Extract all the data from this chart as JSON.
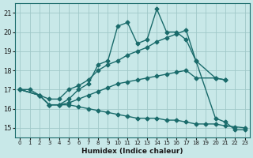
{
  "xlabel": "Humidex (Indice chaleur)",
  "ylabel": "",
  "bg_color": "#c8e8e8",
  "line_color": "#1a6b6b",
  "grid_color": "#a0c8c8",
  "xlim": [
    -0.5,
    23.5
  ],
  "ylim": [
    14.5,
    21.5
  ],
  "xticks": [
    0,
    1,
    2,
    3,
    4,
    5,
    6,
    7,
    8,
    9,
    10,
    11,
    12,
    13,
    14,
    15,
    16,
    17,
    18,
    19,
    20,
    21,
    22,
    23
  ],
  "yticks": [
    15,
    16,
    17,
    18,
    19,
    20,
    21
  ],
  "series": [
    {
      "x": [
        0,
        1,
        2,
        3,
        4,
        5,
        6,
        7,
        8,
        9,
        10,
        11,
        12,
        13,
        14,
        15,
        16,
        17,
        18,
        20,
        21,
        22,
        23
      ],
      "y": [
        17.0,
        17.0,
        16.7,
        16.2,
        16.2,
        16.5,
        17.0,
        17.3,
        18.3,
        18.5,
        20.3,
        20.5,
        19.4,
        19.6,
        21.2,
        20.0,
        20.0,
        19.6,
        18.5,
        15.5,
        15.3,
        14.9,
        14.9
      ],
      "marker": "D",
      "markersize": 2.5,
      "linewidth": 1.0
    },
    {
      "x": [
        0,
        2,
        3,
        4,
        5,
        6,
        7,
        8,
        9,
        10,
        11,
        12,
        13,
        14,
        15,
        16,
        17,
        18,
        20,
        21
      ],
      "y": [
        17.0,
        16.7,
        16.5,
        16.5,
        17.0,
        17.2,
        17.5,
        18.0,
        18.3,
        18.5,
        18.8,
        19.0,
        19.2,
        19.5,
        19.7,
        19.9,
        20.1,
        18.5,
        17.6,
        17.5
      ],
      "marker": "D",
      "markersize": 2.5,
      "linewidth": 1.0
    },
    {
      "x": [
        0,
        2,
        3,
        4,
        5,
        6,
        7,
        8,
        9,
        10,
        11,
        12,
        13,
        14,
        15,
        16,
        17,
        18,
        20,
        21
      ],
      "y": [
        17.0,
        16.7,
        16.2,
        16.2,
        16.3,
        16.5,
        16.7,
        16.9,
        17.1,
        17.3,
        17.4,
        17.5,
        17.6,
        17.7,
        17.8,
        17.9,
        18.0,
        17.6,
        17.6,
        17.5
      ],
      "marker": "D",
      "markersize": 2.5,
      "linewidth": 1.0
    },
    {
      "x": [
        0,
        2,
        3,
        4,
        5,
        6,
        7,
        8,
        9,
        10,
        11,
        12,
        13,
        14,
        15,
        16,
        17,
        18,
        19,
        20,
        21,
        22,
        23
      ],
      "y": [
        17.0,
        16.7,
        16.2,
        16.2,
        16.2,
        16.1,
        16.0,
        15.9,
        15.8,
        15.7,
        15.6,
        15.5,
        15.5,
        15.5,
        15.4,
        15.4,
        15.3,
        15.2,
        15.2,
        15.2,
        15.1,
        15.05,
        15.0
      ],
      "marker": "D",
      "markersize": 2.5,
      "linewidth": 1.0
    }
  ]
}
